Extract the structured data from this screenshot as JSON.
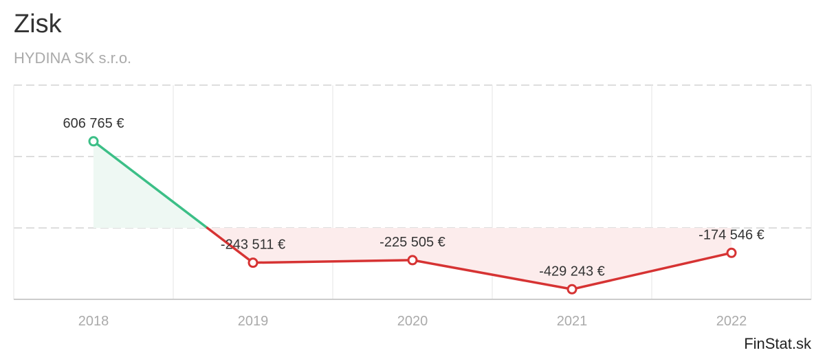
{
  "title": "Zisk",
  "subtitle": "HYDINA SK s.r.o.",
  "credit": "FinStat.sk",
  "colors": {
    "positive": "#3cbf87",
    "negative": "#d63333",
    "positive_fill": "#eef8f3",
    "negative_fill": "#fcecec",
    "grid": "#dddddd",
    "axis_label": "#aaaaaa"
  },
  "chart_data": {
    "type": "line",
    "categories": [
      "2018",
      "2019",
      "2020",
      "2021",
      "2022"
    ],
    "values": [
      606765,
      -243511,
      -225505,
      -429243,
      -174546
    ],
    "data_labels": [
      "606 765 €",
      "-243 511 €",
      "-225 505 €",
      "-429 243 €",
      "-174 546 €"
    ],
    "ylim": [
      -500000,
      1000000
    ],
    "grid": true
  }
}
